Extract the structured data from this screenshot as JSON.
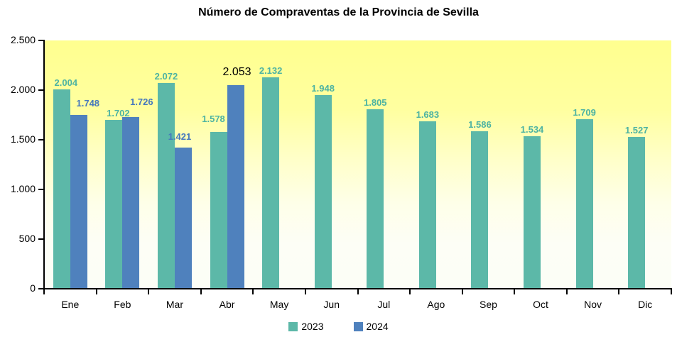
{
  "chart_data": {
    "type": "bar",
    "title": "Número de Compraventas de la Provincia de Sevilla",
    "xlabel": "",
    "ylabel": "",
    "categories": [
      "Ene",
      "Feb",
      "Mar",
      "Abr",
      "May",
      "Jun",
      "Jul",
      "Ago",
      "Sep",
      "Oct",
      "Nov",
      "Dic"
    ],
    "ylim": [
      0,
      2500
    ],
    "yticks": [
      {
        "value": 0,
        "label": "0"
      },
      {
        "value": 500,
        "label": "500"
      },
      {
        "value": 1000,
        "label": "1.000"
      },
      {
        "value": 1500,
        "label": "1.500"
      },
      {
        "value": 2000,
        "label": "2.000"
      },
      {
        "value": 2500,
        "label": "2.500"
      }
    ],
    "grid": false,
    "legend_position": "bottom",
    "plot_background_gradient": [
      "#ffff8f",
      "#ffffff"
    ],
    "axis_color": "#000000",
    "series": [
      {
        "name": "2023",
        "color": "#5cb8a8",
        "label_color": "#4db3a2",
        "values": [
          2004,
          1702,
          2072,
          1578,
          2132,
          1948,
          1805,
          1683,
          1586,
          1534,
          1709,
          1527
        ],
        "labels": [
          "2.004",
          "1.702",
          "2.072",
          "1.578",
          "2.132",
          "1.948",
          "1.805",
          "1.683",
          "1.586",
          "1.534",
          "1.709",
          "1.527"
        ],
        "label_offsets": [
          {
            "dx": 6,
            "dy": 0
          },
          {
            "dx": 6,
            "dy": 0
          },
          {
            "dx": 0,
            "dy": 0
          },
          {
            "dx": -7,
            "dy": -9
          },
          {
            "dx": 0,
            "dy": 0
          },
          {
            "dx": 0,
            "dy": 0
          },
          {
            "dx": 0,
            "dy": 0
          },
          {
            "dx": 0,
            "dy": 0
          },
          {
            "dx": 0,
            "dy": 0
          },
          {
            "dx": 0,
            "dy": 0
          },
          {
            "dx": 0,
            "dy": 0
          },
          {
            "dx": 0,
            "dy": 0
          }
        ]
      },
      {
        "name": "2024",
        "color": "#4f81bd",
        "label_color": "#4678bd",
        "values": [
          1748,
          1726,
          1421,
          2053,
          null,
          null,
          null,
          null,
          null,
          null,
          null,
          null
        ],
        "labels": [
          "1.748",
          "1.726",
          "1.421",
          "2.053",
          null,
          null,
          null,
          null,
          null,
          null,
          null,
          null
        ],
        "label_offsets": [
          {
            "dx": 13,
            "dy": -7
          },
          {
            "dx": 15,
            "dy": -12
          },
          {
            "dx": -5,
            "dy": -6
          },
          {
            "dx": 2,
            "dy": -10,
            "color": "#000000",
            "size": 16,
            "bold": false
          }
        ]
      }
    ]
  }
}
